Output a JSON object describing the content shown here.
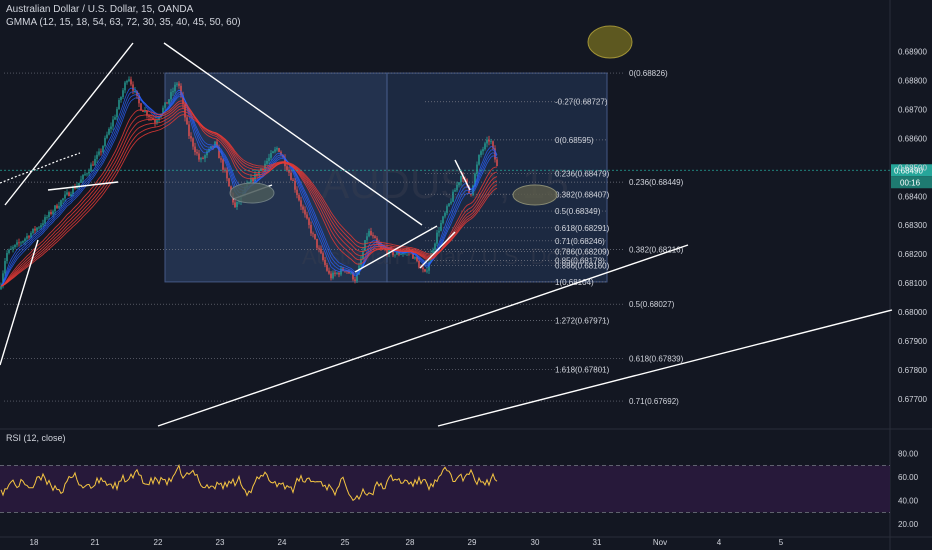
{
  "header": {
    "title": "Australian Dollar / U.S. Dollar, 15, OANDA",
    "indicator": "GMMA (12, 15, 18, 54, 63, 72, 30, 35, 40, 45, 50, 60)"
  },
  "watermark": {
    "symbol": "AUDUSD, 15",
    "name": "Australian Dollar / U.S. Dollar"
  },
  "colors": {
    "background": "#131722",
    "fast_ma": "#2962ff",
    "slow_ma": "#e53935",
    "rsi": "#f5c542",
    "rsi_band": "#2a1a3d",
    "current_price_badge": "#26a69a",
    "fib_boxes": "#1e2b45"
  },
  "chart_data": {
    "type": "candlestick",
    "x_tick_labels": [
      "18",
      "21",
      "22",
      "23",
      "24",
      "25",
      "28",
      "29",
      "30",
      "31",
      "Nov",
      "4",
      "5"
    ],
    "y_tick_labels": [
      "0.68900",
      "0.68800",
      "0.68700",
      "0.68600",
      "0.68500",
      "0.68400",
      "0.68300",
      "0.68200",
      "0.68100",
      "0.68000",
      "0.67900",
      "0.67800",
      "0.67700"
    ],
    "ylim": [
      0.6763,
      0.6893
    ],
    "current_price": {
      "label": "0.68490",
      "countdown": "00:16",
      "value": 0.6849
    },
    "fib_sets": [
      {
        "name": "retracement-1",
        "levels": [
          {
            "label": "0(0.68826)",
            "value": 0.68826
          },
          {
            "label": "0.236(0.68449)",
            "value": 0.68449
          },
          {
            "label": "0.382(0.68216)",
            "value": 0.68216
          },
          {
            "label": "0.5(0.68027)",
            "value": 0.68027
          },
          {
            "label": "0.618(0.67839)",
            "value": 0.67839
          },
          {
            "label": "0.71(0.67692)",
            "value": 0.67692
          }
        ]
      },
      {
        "name": "retracement-2",
        "levels": [
          {
            "label": "-0.27(0.68727)",
            "value": 0.68727
          },
          {
            "label": "0(0.68595)",
            "value": 0.68595
          },
          {
            "label": "0.236(0.68479)",
            "value": 0.68479
          },
          {
            "label": "0.382(0.68407)",
            "value": 0.68407
          },
          {
            "label": "0.5(0.68349)",
            "value": 0.68349
          },
          {
            "label": "0.618(0.68291)",
            "value": 0.68291
          },
          {
            "label": "0.71(0.68246)",
            "value": 0.68246
          },
          {
            "label": "0.786(0.68209)",
            "value": 0.68209
          },
          {
            "label": "0.85(0.68178)",
            "value": 0.68178
          },
          {
            "label": "0.886(0.68160)",
            "value": 0.6816
          },
          {
            "label": "1(0.68104)",
            "value": 0.68104
          },
          {
            "label": "1.272(0.67971)",
            "value": 0.67971
          },
          {
            "label": "1.618(0.67801)",
            "value": 0.67801
          }
        ]
      }
    ],
    "rsi": {
      "label": "RSI (12, close)",
      "y_tick_labels": [
        "80.00",
        "60.00",
        "40.00",
        "20.00"
      ],
      "ylim": [
        15,
        90
      ],
      "upper_band": 70,
      "lower_band": 30
    }
  }
}
